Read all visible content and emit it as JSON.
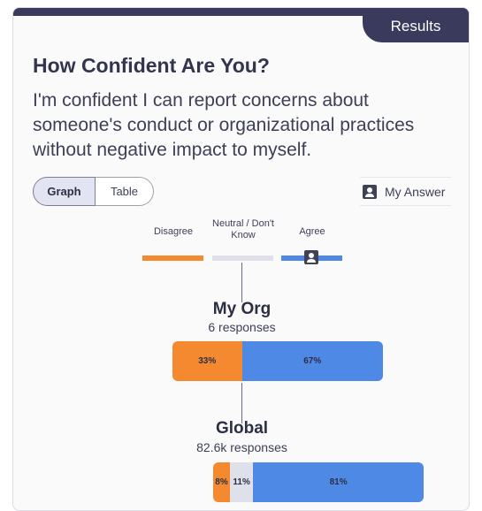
{
  "header": {
    "tab_label": "Results"
  },
  "question": {
    "title": "How Confident Are You?",
    "text": "I'm confident I can report concerns about someone's conduct or organizational practices without negative impact to myself."
  },
  "view_toggle": {
    "graph_label": "Graph",
    "table_label": "Table",
    "selected": "Graph"
  },
  "my_answer": {
    "label": "My Answer",
    "icon": "user-icon"
  },
  "colors": {
    "disagree": "#f5892f",
    "neutral": "#dfe0ea",
    "agree": "#4f89e6",
    "accent": "#393a5c"
  },
  "legend": {
    "disagree": "Disagree",
    "neutral": "Neutral / Don't Know",
    "agree": "Agree",
    "my_answer_category": "agree"
  },
  "chart_data": {
    "type": "bar",
    "stacked": true,
    "series_order": [
      "disagree",
      "neutral",
      "agree"
    ],
    "groups": [
      {
        "name": "My Org",
        "responses": "6 responses",
        "values": {
          "disagree": 33,
          "neutral": 0,
          "agree": 67
        },
        "labels": {
          "disagree": "33%",
          "neutral": "",
          "agree": "67%"
        }
      },
      {
        "name": "Global",
        "responses": "82.6k responses",
        "values": {
          "disagree": 8,
          "neutral": 11,
          "agree": 81
        },
        "labels": {
          "disagree": "8%",
          "neutral": "11%",
          "agree": "81%"
        }
      }
    ]
  }
}
